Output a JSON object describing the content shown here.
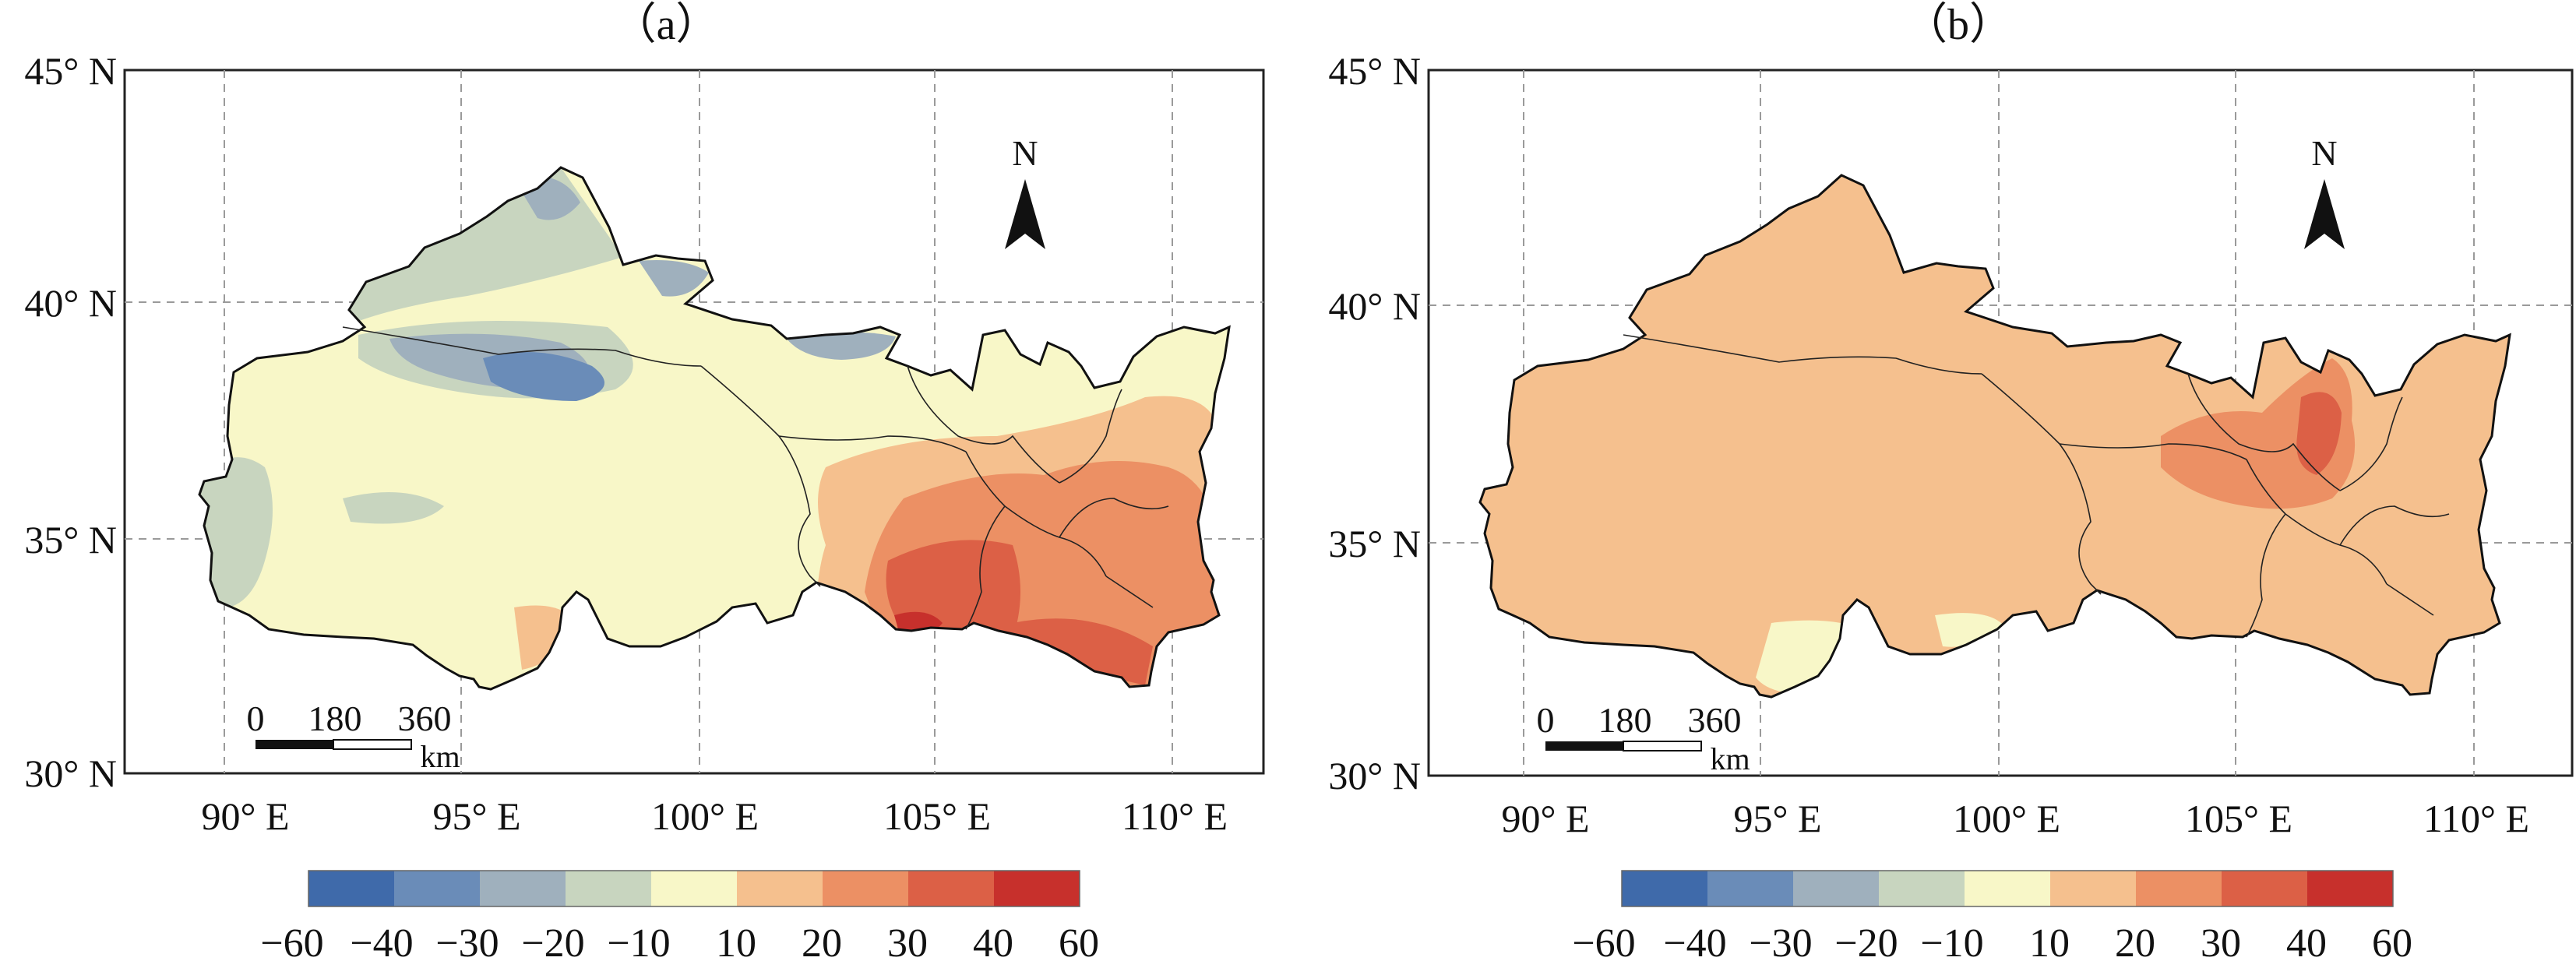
{
  "panels": [
    {
      "label": "（a）",
      "lat_ticks": [
        "45° N",
        "40° N",
        "35° N",
        "30° N"
      ],
      "lon_ticks": [
        "90° E",
        "95° E",
        "100° E",
        "105° E",
        "110° E"
      ],
      "north_label": "N",
      "scale": {
        "ticks": [
          "0",
          "180",
          "360"
        ],
        "unit": "km"
      },
      "colorbar_ticks": [
        "−60",
        "−40",
        "−30",
        "−20",
        "−10",
        "10",
        "20",
        "30",
        "40",
        "60"
      ]
    },
    {
      "label": "（b）",
      "lat_ticks": [
        "45° N",
        "40° N",
        "35° N",
        "30° N"
      ],
      "lon_ticks": [
        "90° E",
        "95° E",
        "100° E",
        "105° E",
        "110° E"
      ],
      "north_label": "N",
      "scale": {
        "ticks": [
          "0",
          "180",
          "360"
        ],
        "unit": "km"
      },
      "colorbar_ticks": [
        "−60",
        "−40",
        "−30",
        "−20",
        "−10",
        "10",
        "20",
        "30",
        "40",
        "60"
      ]
    }
  ],
  "colorbar_colors": [
    "#3f6aaa",
    "#6a8cb8",
    "#9fb0bd",
    "#c8d5bf",
    "#f8f7c8",
    "#f5c08e",
    "#ec9064",
    "#dc6046",
    "#c7302c"
  ],
  "map_colors": {
    "neutral": "#f8f7c8",
    "light_warm": "#f5c08e",
    "warm": "#ec9064",
    "hot": "#dc6046",
    "hottest": "#c7302c",
    "cool": "#c8d5bf",
    "cooler": "#9fb0bd",
    "cold": "#6a8cb8"
  }
}
